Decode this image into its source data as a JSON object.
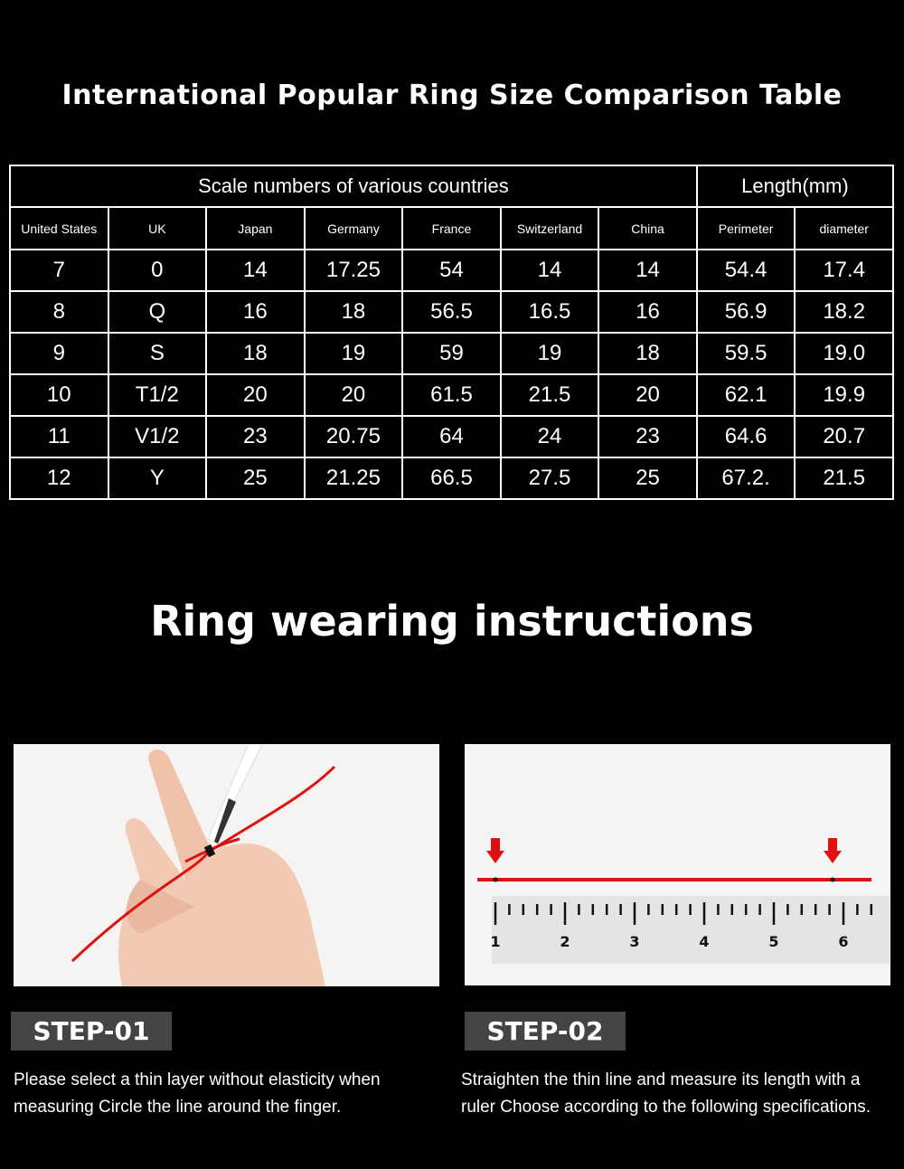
{
  "size_table": {
    "title": "International Popular Ring Size Comparison Table",
    "group_headers": [
      "Scale numbers of various countries",
      "Length(mm)"
    ],
    "columns": [
      "United States",
      "UK",
      "Japan",
      "Germany",
      "France",
      "Switzerland",
      "China",
      "Perimeter",
      "diameter"
    ],
    "rows": [
      [
        "7",
        "0",
        "14",
        "17.25",
        "54",
        "14",
        "14",
        "54.4",
        "17.4"
      ],
      [
        "8",
        "Q",
        "16",
        "18",
        "56.5",
        "16.5",
        "16",
        "56.9",
        "18.2"
      ],
      [
        "9",
        "S",
        "18",
        "19",
        "59",
        "19",
        "18",
        "59.5",
        "19.0"
      ],
      [
        "10",
        "T1/2",
        "20",
        "20",
        "61.5",
        "21.5",
        "20",
        "62.1",
        "19.9"
      ],
      [
        "11",
        "V1/2",
        "23",
        "20.75",
        "64",
        "24",
        "23",
        "64.6",
        "20.7"
      ],
      [
        "12",
        "Y",
        "25",
        "21.25",
        "66.5",
        "27.5",
        "25",
        "67.2.",
        "21.5"
      ]
    ]
  },
  "instructions": {
    "title": "Ring wearing instructions",
    "steps": [
      {
        "label": "STEP-01",
        "text": "Please select a thin layer without elasticity when measuring Circle the line around the finger."
      },
      {
        "label": "STEP-02",
        "text": "Straighten the thin line and measure its length with a ruler Choose according to the following specifications."
      }
    ],
    "ruler_numbers": [
      "1",
      "2",
      "3",
      "4",
      "5",
      "6"
    ]
  },
  "colors": {
    "background": "#000000",
    "accent_red": "#e01010",
    "step_badge": "#444444"
  }
}
